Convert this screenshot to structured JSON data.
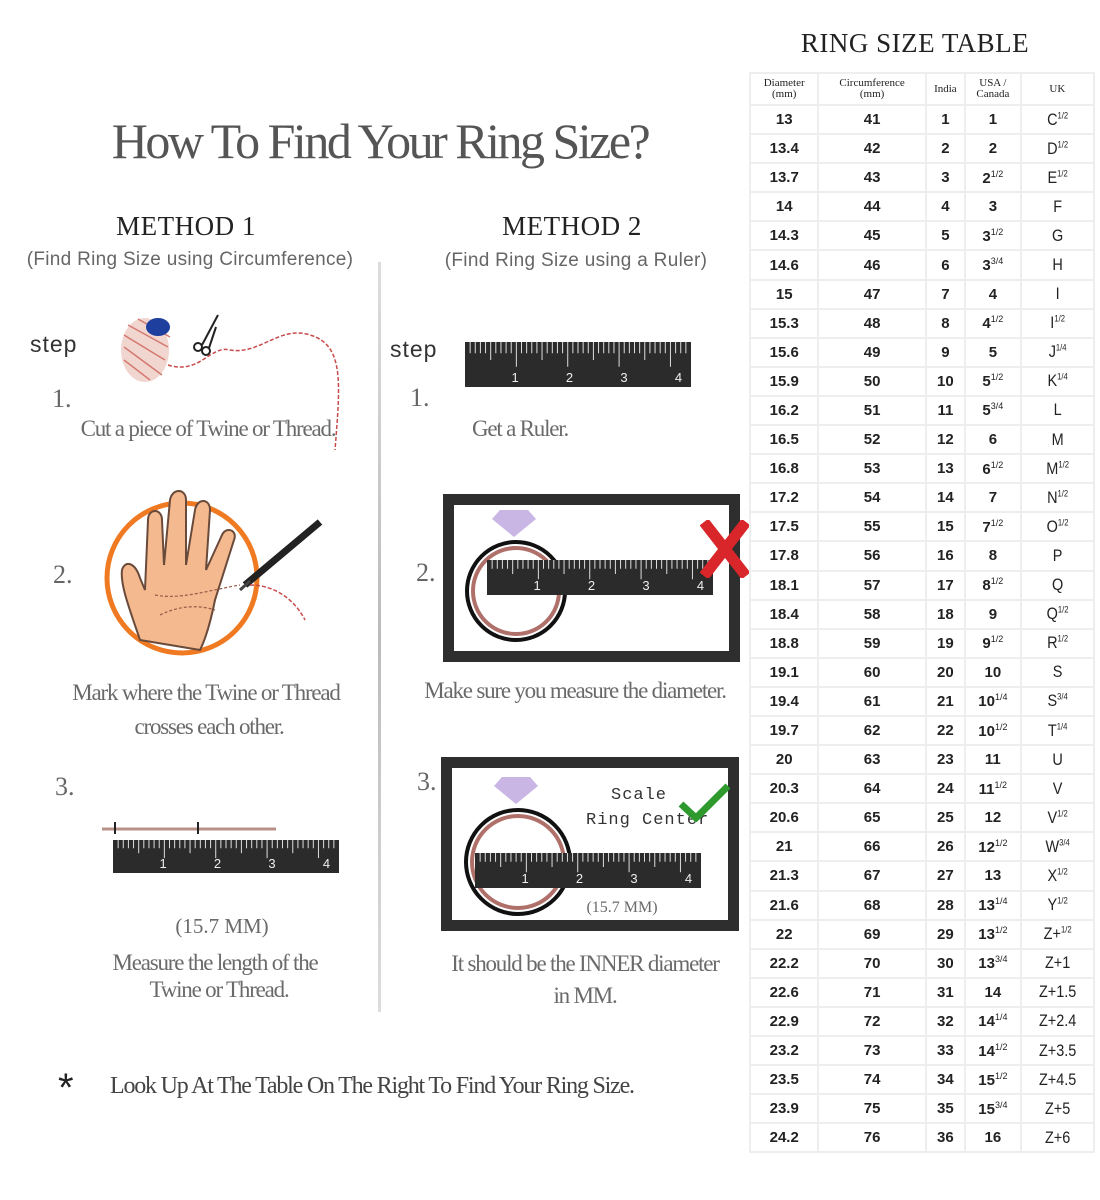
{
  "title": "How To Find Your Ring Size?",
  "method1": {
    "heading": "METHOD 1",
    "subtitle": "(Find Ring Size using Circumference)",
    "step_label": "step",
    "steps": [
      {
        "number": "1.",
        "lines": [
          "Cut a piece of  Twine or Thread."
        ]
      },
      {
        "number": "2.",
        "lines": [
          "Mark where the Twine or Thread",
          "crosses each other."
        ]
      },
      {
        "number": "3.",
        "measure": "(15.7 MM)",
        "lines": [
          "Measure the length of the",
          "Twine or Thread."
        ]
      }
    ]
  },
  "method2": {
    "heading": "METHOD 2",
    "subtitle": "(Find Ring Size using a Ruler)",
    "step_label": "step",
    "steps": [
      {
        "number": "1.",
        "lines": [
          "Get a Ruler."
        ]
      },
      {
        "number": "2.",
        "lines": [
          "Make sure you measure the diameter."
        ]
      },
      {
        "number": "3.",
        "scale_label": "Scale",
        "center_label": "Ring Center",
        "measure": "(15.7 MM)",
        "lines": [
          "It should be the INNER diameter",
          "in MM."
        ]
      }
    ]
  },
  "ruler_numbers": [
    "1",
    "2",
    "3",
    "4"
  ],
  "footer": {
    "bullet": "*",
    "text": "Look Up  At The Table On The Right To Find Your Ring Size."
  },
  "colors": {
    "accent_orange": "#f07a22",
    "wrong_red": "#d9262b",
    "correct_green": "#2e9a2e",
    "ruler": "#2b2b2b",
    "ring": "#b0706a",
    "diamond": "#c9b6e4"
  },
  "icons": [
    "thread-spool-icon",
    "scissors-icon",
    "hand-icon",
    "pen-icon",
    "ruler-icon",
    "diamond-icon",
    "ring-icon",
    "cross-icon",
    "check-icon"
  ],
  "table": {
    "title": "RING SIZE TABLE",
    "headers": [
      [
        "Diameter",
        "(mm)"
      ],
      [
        "Circumference",
        "(mm)"
      ],
      [
        "India",
        ""
      ],
      [
        "USA /",
        "Canada"
      ],
      [
        "UK",
        ""
      ]
    ],
    "rows": [
      [
        "13",
        "41",
        "1",
        [
          "1",
          ""
        ],
        [
          "C",
          "1/2"
        ]
      ],
      [
        "13.4",
        "42",
        "2",
        [
          "2",
          ""
        ],
        [
          "D",
          "1/2"
        ]
      ],
      [
        "13.7",
        "43",
        "3",
        [
          "2",
          "1/2"
        ],
        [
          "E",
          "1/2"
        ]
      ],
      [
        "14",
        "44",
        "4",
        [
          "3",
          ""
        ],
        [
          "F",
          ""
        ]
      ],
      [
        "14.3",
        "45",
        "5",
        [
          "3",
          "1/2"
        ],
        [
          "G",
          ""
        ]
      ],
      [
        "14.6",
        "46",
        "6",
        [
          "3",
          "3/4"
        ],
        [
          "H",
          ""
        ]
      ],
      [
        "15",
        "47",
        "7",
        [
          "4",
          ""
        ],
        [
          "I",
          ""
        ]
      ],
      [
        "15.3",
        "48",
        "8",
        [
          "4",
          "1/2"
        ],
        [
          "I",
          "1/2"
        ]
      ],
      [
        "15.6",
        "49",
        "9",
        [
          "5",
          ""
        ],
        [
          "J",
          "1/4"
        ]
      ],
      [
        "15.9",
        "50",
        "10",
        [
          "5",
          "1/2"
        ],
        [
          "K",
          "1/4"
        ]
      ],
      [
        "16.2",
        "51",
        "11",
        [
          "5",
          "3/4"
        ],
        [
          "L",
          ""
        ]
      ],
      [
        "16.5",
        "52",
        "12",
        [
          "6",
          ""
        ],
        [
          "M",
          ""
        ]
      ],
      [
        "16.8",
        "53",
        "13",
        [
          "6",
          "1/2"
        ],
        [
          "M",
          "1/2"
        ]
      ],
      [
        "17.2",
        "54",
        "14",
        [
          "7",
          ""
        ],
        [
          "N",
          "1/2"
        ]
      ],
      [
        "17.5",
        "55",
        "15",
        [
          "7",
          "1/2"
        ],
        [
          "O",
          "1/2"
        ]
      ],
      [
        "17.8",
        "56",
        "16",
        [
          "8",
          ""
        ],
        [
          "P",
          ""
        ]
      ],
      [
        "18.1",
        "57",
        "17",
        [
          "8",
          "1/2"
        ],
        [
          "Q",
          ""
        ]
      ],
      [
        "18.4",
        "58",
        "18",
        [
          "9",
          ""
        ],
        [
          "Q",
          "1/2"
        ]
      ],
      [
        "18.8",
        "59",
        "19",
        [
          "9",
          "1/2"
        ],
        [
          "R",
          "1/2"
        ]
      ],
      [
        "19.1",
        "60",
        "20",
        [
          "10",
          ""
        ],
        [
          "S",
          ""
        ]
      ],
      [
        "19.4",
        "61",
        "21",
        [
          "10",
          "1/4"
        ],
        [
          "S",
          "3/4"
        ]
      ],
      [
        "19.7",
        "62",
        "22",
        [
          "10",
          "1/2"
        ],
        [
          "T",
          "1/4"
        ]
      ],
      [
        "20",
        "63",
        "23",
        [
          "11",
          ""
        ],
        [
          "U",
          ""
        ]
      ],
      [
        "20.3",
        "64",
        "24",
        [
          "11",
          "1/2"
        ],
        [
          "V",
          ""
        ]
      ],
      [
        "20.6",
        "65",
        "25",
        [
          "12",
          ""
        ],
        [
          "V",
          "1/2"
        ]
      ],
      [
        "21",
        "66",
        "26",
        [
          "12",
          "1/2"
        ],
        [
          "W",
          "3/4"
        ]
      ],
      [
        "21.3",
        "67",
        "27",
        [
          "13",
          ""
        ],
        [
          "X",
          "1/2"
        ]
      ],
      [
        "21.6",
        "68",
        "28",
        [
          "13",
          "1/4"
        ],
        [
          "Y",
          "1/2"
        ]
      ],
      [
        "22",
        "69",
        "29",
        [
          "13",
          "1/2"
        ],
        [
          "Z+",
          "1/2"
        ]
      ],
      [
        "22.2",
        "70",
        "30",
        [
          "13",
          "3/4"
        ],
        [
          "Z+1",
          ""
        ]
      ],
      [
        "22.6",
        "71",
        "31",
        [
          "14",
          ""
        ],
        [
          "Z+1.5",
          ""
        ]
      ],
      [
        "22.9",
        "72",
        "32",
        [
          "14",
          "1/4"
        ],
        [
          "Z+2.4",
          ""
        ]
      ],
      [
        "23.2",
        "73",
        "33",
        [
          "14",
          "1/2"
        ],
        [
          "Z+3.5",
          ""
        ]
      ],
      [
        "23.5",
        "74",
        "34",
        [
          "15",
          "1/2"
        ],
        [
          "Z+4.5",
          ""
        ]
      ],
      [
        "23.9",
        "75",
        "35",
        [
          "15",
          "3/4"
        ],
        [
          "Z+5",
          ""
        ]
      ],
      [
        "24.2",
        "76",
        "36",
        [
          "16",
          ""
        ],
        [
          "Z+6",
          ""
        ]
      ]
    ]
  }
}
